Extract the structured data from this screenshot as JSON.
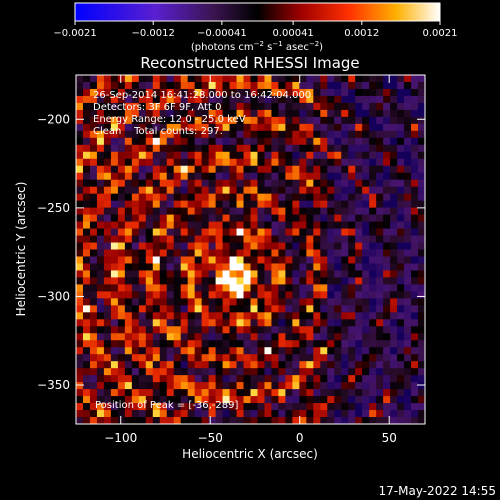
{
  "chart_data": {
    "type": "heatmap",
    "title": "Reconstructed RHESSI Image",
    "xlabel": "Heliocentric X (arcsec)",
    "ylabel": "Heliocentric Y (arcsec)",
    "xlim": [
      -125,
      70
    ],
    "ylim": [
      -372,
      -175
    ],
    "x_ticks": [
      -100,
      -50,
      0,
      50
    ],
    "x_tick_labels": [
      "−100",
      "−50",
      "0",
      "50"
    ],
    "y_ticks": [
      -200,
      -250,
      -300,
      -350
    ],
    "y_tick_labels": [
      "−200",
      "−250",
      "−300",
      "−350"
    ],
    "colorbar": {
      "range": [
        -0.0021,
        0.0021
      ],
      "ticks": [
        -0.0021,
        -0.0012,
        -0.00041,
        0.00041,
        0.0012,
        0.0021
      ],
      "tick_labels": [
        "−0.0021",
        "−0.0012",
        "−0.00041",
        "0.00041",
        "0.0012",
        "0.0021"
      ],
      "colormap": "blue-purple-red-orange-yellow-white",
      "unit_parts": [
        "(photons cm",
        "−2",
        " s",
        "−1",
        " asec",
        "−2",
        ")"
      ]
    },
    "annotations": [
      "26-Sep-2014 16:41:28.000 to 16:42:04.000",
      "Detectors: 3F 6F 9F, Att 0",
      "Energy Range: 12.0 - 25.0 keV",
      "Clean    Total counts: 297."
    ],
    "peak_label": "Position of Peak = [-36,-289]",
    "peak": {
      "x": -36,
      "y": -289
    },
    "timestamp": "17-May-2022 14:55"
  }
}
